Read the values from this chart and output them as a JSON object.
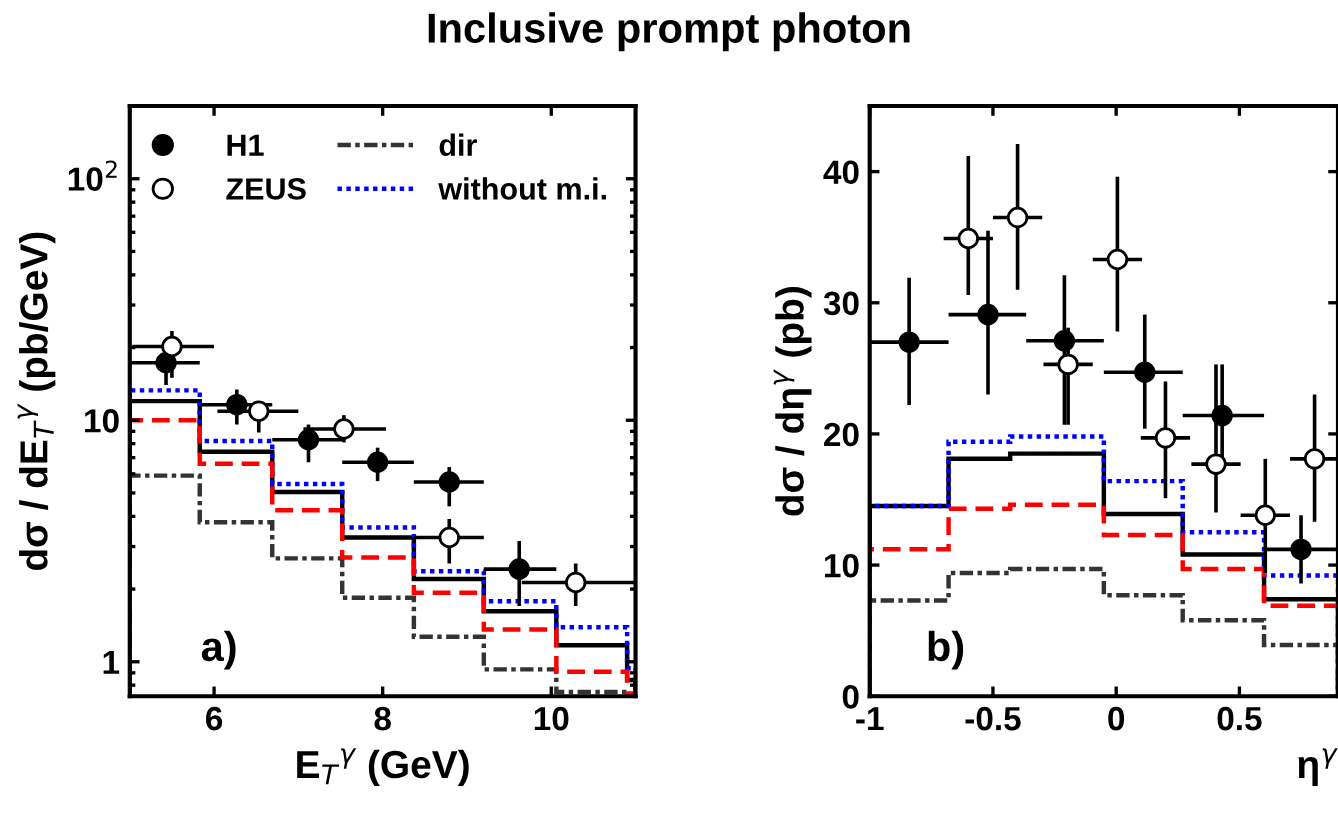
{
  "chart_data": [
    {
      "type": "histogram",
      "title": "Inclusive prompt photon",
      "xlabel": "E$_{T}$$^{γ}$ (GeV)",
      "ylabel": "dσ / dE$_{T}$$^{γ}$ (pb/GeV)",
      "log": "y",
      "xlim": [
        5,
        11
      ],
      "xticks": [
        6,
        8,
        10
      ],
      "ylim": [
        0.72,
        200
      ],
      "yticks": [
        1,
        10,
        {
          "value": 100,
          "label": "10$^{2}$"
        }
      ],
      "legend": "top right",
      "grid": false,
      "annotations": [
        "a)"
      ],
      "series": [
        {
          "name": "H1",
          "type": "scatter",
          "marker": "circle",
          "color": "#000000",
          "x": [
            5.43,
            6.27,
            7.12,
            7.94,
            8.79,
            9.62
          ],
          "values": [
            17.3,
            11.6,
            8.3,
            6.7,
            5.55,
            2.42
          ],
          "errors": [
            [
              14.0,
              21.2
            ],
            [
              9.6,
              13.4
            ],
            [
              6.7,
              9.6
            ],
            [
              5.6,
              7.7
            ],
            [
              4.4,
              6.4
            ],
            [
              1.7,
              3.16
            ]
          ],
          "xerrors": [
            [
              5.0,
              5.83
            ],
            [
              5.85,
              6.69
            ],
            [
              6.69,
              7.52
            ],
            [
              7.52,
              8.37
            ],
            [
              8.37,
              9.2
            ],
            [
              9.2,
              10.06
            ]
          ]
        },
        {
          "name": "ZEUS",
          "type": "scatter",
          "marker": "circle",
          "color": "#ffffff",
          "x": [
            5.5,
            6.53,
            7.54,
            8.79,
            10.29
          ],
          "values": [
            20.2,
            10.9,
            9.2,
            3.27,
            2.13
          ],
          "errors": [
            [
              15.0,
              23.4
            ],
            [
              8.9,
              12.0
            ],
            [
              8.1,
              10.5
            ],
            [
              2.55,
              3.9
            ],
            [
              1.7,
              2.55
            ]
          ],
          "xerrors": [
            [
              5.03,
              6.0
            ],
            [
              6.04,
              7.0
            ],
            [
              7.06,
              8.04
            ],
            [
              8.37,
              9.2
            ],
            [
              9.65,
              11.0
            ]
          ]
        },
        {
          "line_style": "solid",
          "color": "#000000",
          "bins": [
            5,
            5.83,
            6.69,
            7.52,
            8.37,
            9.2,
            10.06,
            10.9,
            11
          ],
          "values": [
            12.0,
            7.4,
            5.05,
            3.27,
            2.2,
            1.62,
            1.17,
            0.84
          ]
        },
        {
          "name": "dir",
          "line_style": "dashdot",
          "color": "#333333",
          "bins": [
            5,
            5.83,
            6.69,
            7.52,
            8.37,
            9.2,
            10.06,
            10.9
          ],
          "values": [
            5.9,
            3.78,
            2.68,
            1.84,
            1.27,
            0.93,
            0.75
          ]
        },
        {
          "name": "without m.i.",
          "line_style": "dotted",
          "color": "#0000ff",
          "bins": [
            5,
            5.83,
            6.69,
            7.52,
            8.37,
            9.2,
            10.06,
            10.9,
            11
          ],
          "values": [
            13.3,
            8.2,
            5.45,
            3.6,
            2.37,
            1.78,
            1.39,
            0.94
          ]
        },
        {
          "line_style": "dashed",
          "color": "#ff0000",
          "bins": [
            5,
            5.83,
            6.69,
            7.52,
            8.37,
            9.2,
            10.06,
            10.9,
            11
          ],
          "values": [
            10.0,
            6.6,
            4.24,
            2.7,
            1.93,
            1.36,
            0.91,
            0.74
          ]
        }
      ]
    },
    {
      "type": "histogram",
      "xlabel": "η$^{γ}$",
      "ylabel": "dσ / dη$^{γ}$ (pb)",
      "xlim": [
        -1,
        0.9
      ],
      "xticks": [
        -1,
        -0.5,
        0,
        0.5
      ],
      "ylim": [
        0,
        45
      ],
      "yticks": [
        0,
        10,
        20,
        30,
        40
      ],
      "legend": false,
      "grid": false,
      "annotations": [
        "b)"
      ],
      "series": [
        {
          "type": "scatter",
          "marker": "circle",
          "color": "#000000",
          "x": [
            -0.84,
            -0.52,
            -0.21,
            0.116,
            0.43,
            0.75
          ],
          "values": [
            27.0,
            29.1,
            27.1,
            24.7,
            21.4,
            11.2
          ],
          "errors": [
            [
              22.2,
              31.9
            ],
            [
              23.0,
              35.5
            ],
            [
              20.7,
              32.1
            ],
            [
              20.4,
              29.1
            ],
            [
              17.7,
              25.3
            ],
            [
              8.6,
              13.8
            ]
          ],
          "xerrors": [
            [
              -1,
              -0.68
            ],
            [
              -0.68,
              -0.365
            ],
            [
              -0.365,
              -0.05
            ],
            [
              -0.05,
              0.27
            ],
            [
              0.27,
              0.6
            ],
            [
              0.6,
              0.9
            ]
          ]
        },
        {
          "type": "scatter",
          "marker": "circle",
          "color": "#ffffff",
          "x": [
            -0.6,
            -0.4,
            -0.195,
            0.005,
            0.2,
            0.405,
            0.605,
            0.805
          ],
          "values": [
            34.9,
            36.5,
            25.3,
            33.3,
            19.7,
            17.7,
            13.8,
            18.1
          ],
          "errors": [
            [
              30.6,
              41.2
            ],
            [
              31.0,
              42.1
            ],
            [
              20.7,
              28.1
            ],
            [
              27.8,
              39.6
            ],
            [
              15.1,
              24.0
            ],
            [
              14.0,
              25.3
            ],
            [
              9.4,
              18.1
            ],
            [
              13.3,
              23.0
            ]
          ],
          "xerrors": [
            [
              -0.7,
              -0.5
            ],
            [
              -0.5,
              -0.3
            ],
            [
              -0.295,
              -0.095
            ],
            [
              -0.095,
              0.105
            ],
            [
              0.1,
              0.3
            ],
            [
              0.305,
              0.505
            ],
            [
              0.505,
              0.705
            ],
            [
              0.705,
              0.9
            ]
          ]
        },
        {
          "line_style": "solid",
          "color": "#000000",
          "bins": [
            -1,
            -0.68,
            -0.43,
            -0.05,
            0.27,
            0.6,
            0.9
          ],
          "values": [
            14.5,
            18.1,
            18.5,
            13.9,
            10.8,
            7.4
          ]
        },
        {
          "line_style": "dashdot",
          "color": "#333333",
          "bins": [
            -1,
            -0.68,
            -0.43,
            -0.05,
            0.27,
            0.6,
            0.9
          ],
          "values": [
            7.3,
            9.4,
            9.7,
            7.7,
            5.8,
            3.9
          ]
        },
        {
          "line_style": "dotted",
          "color": "#0000ff",
          "bins": [
            -1,
            -0.68,
            -0.43,
            -0.05,
            0.27,
            0.6,
            0.9
          ],
          "values": [
            14.5,
            19.4,
            19.8,
            16.4,
            12.5,
            9.2
          ]
        },
        {
          "line_style": "dashed",
          "color": "#ff0000",
          "bins": [
            -1,
            -0.68,
            -0.43,
            -0.05,
            0.27,
            0.6,
            0.9
          ],
          "values": [
            11.2,
            14.3,
            14.6,
            12.3,
            9.7,
            6.9
          ]
        }
      ]
    }
  ]
}
